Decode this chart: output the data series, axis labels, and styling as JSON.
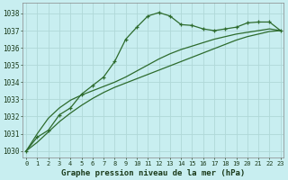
{
  "title": "Graphe pression niveau de la mer (hPa)",
  "bg_color": "#c8eef0",
  "grid_color": "#b0d8d8",
  "line_color": "#2d6b2d",
  "x_labels": [
    "0",
    "1",
    "2",
    "3",
    "4",
    "5",
    "6",
    "7",
    "8",
    "9",
    "10",
    "11",
    "12",
    "13",
    "14",
    "15",
    "16",
    "17",
    "18",
    "19",
    "20",
    "21",
    "22",
    "23"
  ],
  "series1": [
    1030.0,
    1030.8,
    1031.2,
    1032.1,
    1032.5,
    1033.3,
    1033.8,
    1034.3,
    1035.2,
    1036.5,
    1037.2,
    1037.85,
    1038.05,
    1037.85,
    1037.35,
    1037.3,
    1037.1,
    1037.0,
    1037.1,
    1037.2,
    1037.45,
    1037.5,
    1037.5,
    1037.0
  ],
  "series2": [
    1030.0,
    1031.0,
    1031.9,
    1032.5,
    1032.95,
    1033.25,
    1033.5,
    1033.75,
    1034.0,
    1034.3,
    1034.65,
    1035.0,
    1035.35,
    1035.65,
    1035.9,
    1036.1,
    1036.3,
    1036.5,
    1036.65,
    1036.8,
    1036.9,
    1037.0,
    1037.1,
    1037.0
  ],
  "series3": [
    1030.0,
    1030.5,
    1031.1,
    1031.7,
    1032.2,
    1032.65,
    1033.05,
    1033.4,
    1033.7,
    1033.95,
    1034.2,
    1034.45,
    1034.7,
    1034.95,
    1035.2,
    1035.45,
    1035.7,
    1035.95,
    1036.2,
    1036.45,
    1036.65,
    1036.8,
    1036.95,
    1037.0
  ],
  "ylim": [
    1029.6,
    1038.6
  ],
  "yticks": [
    1030,
    1031,
    1032,
    1033,
    1034,
    1035,
    1036,
    1037,
    1038
  ],
  "figsize": [
    3.2,
    2.0
  ],
  "dpi": 100
}
